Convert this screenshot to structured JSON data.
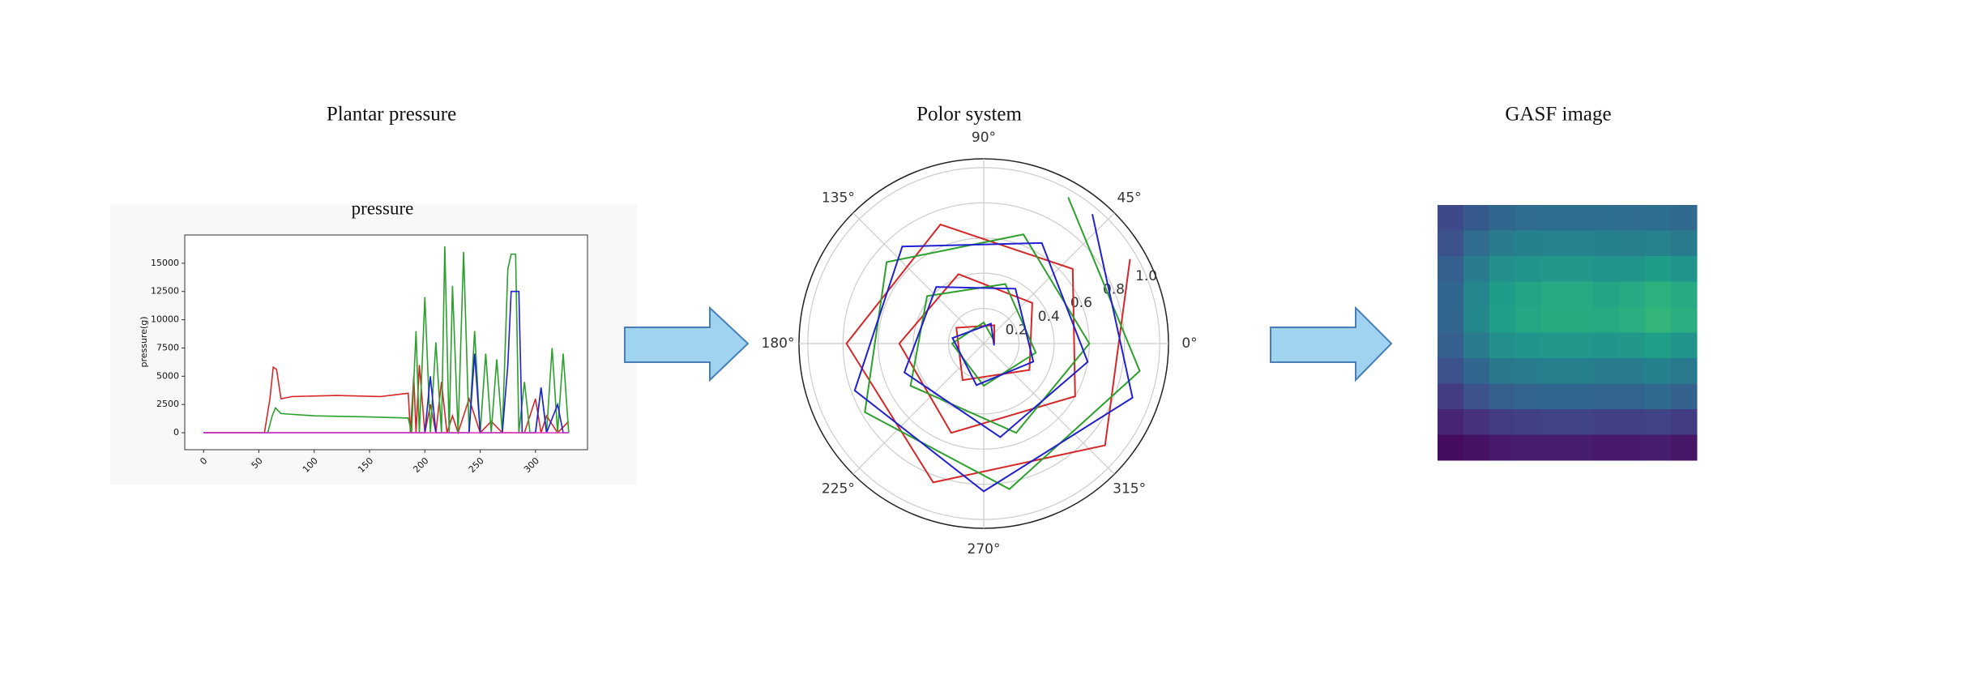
{
  "headings": [
    "Plantar pressure",
    "Polor system",
    "GASF image"
  ],
  "chart_data": [
    {
      "type": "line",
      "title": "pressure",
      "y_label": "pressure(g)",
      "xlim": [
        -17,
        347
      ],
      "ylim": [
        -1500,
        17500
      ],
      "xticks": [
        0,
        50,
        100,
        150,
        200,
        250,
        300
      ],
      "yticks": [
        0,
        2500,
        5000,
        7500,
        10000,
        12500,
        15000
      ],
      "series": [
        {
          "color": "#d62728",
          "x": [
            0,
            55,
            60,
            63,
            66,
            70,
            80,
            120,
            160,
            185,
            187,
            190,
            192,
            195,
            200,
            205,
            210,
            215,
            220,
            225,
            230,
            240,
            250,
            260,
            270,
            280,
            290,
            300,
            305,
            310,
            320,
            330
          ],
          "y": [
            0,
            0,
            3000,
            5800,
            5600,
            3000,
            3200,
            3300,
            3200,
            3500,
            0,
            5000,
            0,
            6000,
            0,
            2500,
            0,
            4500,
            0,
            1500,
            0,
            3000,
            0,
            1000,
            0,
            0,
            0,
            3000,
            0,
            1500,
            0,
            1000
          ]
        },
        {
          "color": "#2ca02c",
          "x": [
            0,
            58,
            62,
            65,
            70,
            100,
            150,
            185,
            188,
            192,
            195,
            200,
            205,
            210,
            215,
            218,
            222,
            225,
            230,
            235,
            240,
            245,
            250,
            255,
            260,
            265,
            270,
            275,
            278,
            282,
            285,
            290,
            295,
            300,
            305,
            310,
            315,
            320,
            325,
            330
          ],
          "y": [
            0,
            0,
            1500,
            2200,
            1700,
            1500,
            1400,
            1300,
            0,
            9000,
            0,
            12000,
            0,
            8000,
            0,
            16500,
            0,
            13000,
            0,
            16000,
            0,
            9000,
            0,
            7000,
            0,
            6500,
            0,
            14500,
            15800,
            15800,
            0,
            4500,
            0,
            0,
            4000,
            0,
            7500,
            0,
            7000,
            0
          ]
        },
        {
          "color": "#1f1fd6",
          "x": [
            0,
            200,
            205,
            210,
            240,
            245,
            250,
            270,
            275,
            278,
            285,
            288,
            300,
            305,
            310,
            320,
            325,
            330
          ],
          "y": [
            0,
            0,
            5000,
            0,
            0,
            7000,
            0,
            0,
            6000,
            12500,
            12500,
            0,
            0,
            4000,
            0,
            2500,
            0,
            0
          ]
        },
        {
          "color": "#e040c0",
          "x": [
            0,
            330
          ],
          "y": [
            0,
            0
          ]
        }
      ]
    },
    {
      "type": "polar",
      "rlim": [
        0,
        1.05
      ],
      "angle_ticks": [
        {
          "value": 0,
          "label": "0°"
        },
        {
          "value": 45,
          "label": "45°"
        },
        {
          "value": 90,
          "label": "90°"
        },
        {
          "value": 135,
          "label": "135°"
        },
        {
          "value": 180,
          "label": "180°"
        },
        {
          "value": 225,
          "label": "225°"
        },
        {
          "value": 270,
          "label": "270°"
        },
        {
          "value": 315,
          "label": "315°"
        }
      ],
      "rticks": [
        0.2,
        0.4,
        0.6,
        0.8,
        {
          "value": 1,
          "label": "1.0"
        }
      ],
      "series": [
        {
          "color": "#d62728",
          "r": [
            0.06,
            0.12,
            0.18,
            0.24,
            0.3,
            0.36,
            0.42,
            0.48,
            0.54,
            0.6,
            0.66,
            0.72,
            0.78,
            0.84,
            0.9,
            0.96
          ],
          "theta": [
            0,
            60,
            150,
            240,
            330,
            400,
            470,
            540,
            610,
            690,
            760,
            830,
            900,
            970,
            1040,
            1110
          ]
        },
        {
          "color": "#2ca02c",
          "r": [
            0.06,
            0.12,
            0.18,
            0.24,
            0.3,
            0.36,
            0.42,
            0.48,
            0.54,
            0.6,
            0.66,
            0.72,
            0.78,
            0.84,
            0.9,
            0.96
          ],
          "theta": [
            20,
            90,
            180,
            270,
            350,
            430,
            500,
            570,
            650,
            720,
            790,
            860,
            930,
            1000,
            1070,
            1140
          ]
        },
        {
          "color": "#2020d0",
          "r": [
            0.06,
            0.12,
            0.18,
            0.24,
            0.3,
            0.36,
            0.42,
            0.48,
            0.54,
            0.6,
            0.66,
            0.72,
            0.78,
            0.84,
            0.9,
            0.96
          ],
          "theta": [
            -10,
            70,
            170,
            260,
            340,
            420,
            490,
            560,
            640,
            710,
            780,
            850,
            920,
            990,
            1060,
            1130
          ]
        }
      ]
    },
    {
      "type": "heatmap",
      "colormap": "viridis",
      "values": [
        [
          0.22,
          0.28,
          0.33,
          0.35,
          0.36,
          0.36,
          0.36,
          0.35,
          0.36,
          0.34
        ],
        [
          0.25,
          0.35,
          0.42,
          0.44,
          0.45,
          0.45,
          0.44,
          0.43,
          0.45,
          0.42
        ],
        [
          0.3,
          0.42,
          0.5,
          0.52,
          0.53,
          0.53,
          0.52,
          0.52,
          0.55,
          0.52
        ],
        [
          0.33,
          0.46,
          0.55,
          0.58,
          0.6,
          0.6,
          0.58,
          0.6,
          0.63,
          0.6
        ],
        [
          0.33,
          0.47,
          0.56,
          0.59,
          0.61,
          0.61,
          0.6,
          0.62,
          0.66,
          0.62
        ],
        [
          0.3,
          0.42,
          0.5,
          0.52,
          0.53,
          0.53,
          0.52,
          0.53,
          0.56,
          0.52
        ],
        [
          0.25,
          0.33,
          0.4,
          0.42,
          0.43,
          0.43,
          0.42,
          0.42,
          0.44,
          0.41
        ],
        [
          0.18,
          0.25,
          0.3,
          0.32,
          0.33,
          0.33,
          0.32,
          0.32,
          0.34,
          0.31
        ],
        [
          0.1,
          0.14,
          0.18,
          0.19,
          0.2,
          0.2,
          0.19,
          0.19,
          0.2,
          0.18
        ],
        [
          0.03,
          0.05,
          0.07,
          0.08,
          0.08,
          0.08,
          0.07,
          0.07,
          0.08,
          0.06
        ]
      ]
    }
  ]
}
